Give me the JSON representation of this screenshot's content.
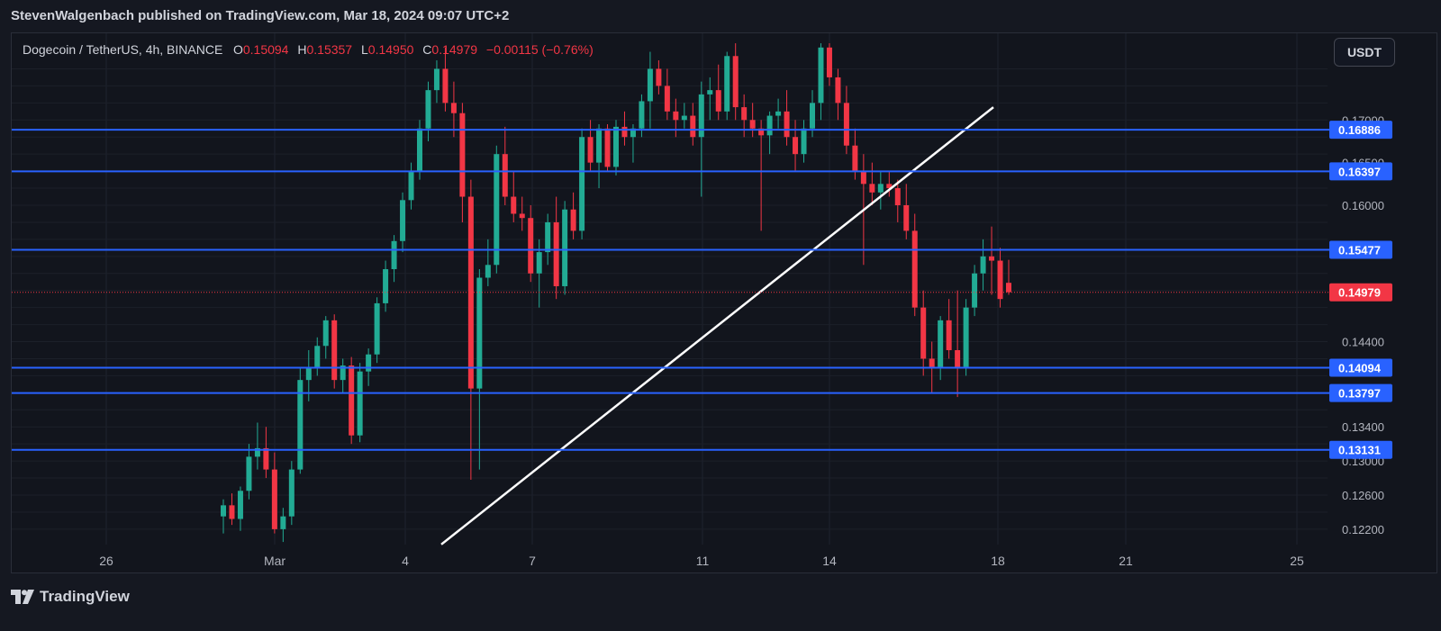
{
  "header": {
    "publisher_line": "StevenWalgenbach published on TradingView.com, Mar 18, 2024 09:07 UTC+2"
  },
  "legend": {
    "symbol": "Dogecoin / TetherUS, 4h, BINANCE",
    "open_label": "O",
    "open": "0.15094",
    "high_label": "H",
    "high": "0.15357",
    "low_label": "L",
    "low": "0.14950",
    "close_label": "C",
    "close": "0.14979",
    "change": "−0.00115 (−0.76%)"
  },
  "currency_button": "USDT",
  "footer": {
    "brand": "TradingView"
  },
  "colors": {
    "up": "#22ab94",
    "down": "#f23645",
    "level": "#2962ff",
    "trendline": "#ffffff",
    "background": "#12151d"
  },
  "chart_data": {
    "type": "candlestick",
    "x_ticks": [
      "26",
      "Mar",
      "4",
      "7",
      "11",
      "14",
      "18",
      "21",
      "25"
    ],
    "y_ticks": [
      "0.12200",
      "0.12600",
      "0.13000",
      "0.13400",
      "0.14400",
      "0.16000",
      "0.16500",
      "0.17000"
    ],
    "ylim": [
      0.12,
      0.177
    ],
    "grid": true,
    "horizontal_levels": [
      "0.16886",
      "0.16397",
      "0.15477",
      "0.14094",
      "0.13797",
      "0.13131"
    ],
    "current_price": "0.14979",
    "trendline": {
      "from": [
        "Mar 4",
        0.12
      ],
      "to": [
        "Mar 18",
        0.1715
      ]
    },
    "candles_ohlc": [
      [
        0.1235,
        0.1255,
        0.1215,
        0.1248
      ],
      [
        0.1248,
        0.1262,
        0.1225,
        0.1232
      ],
      [
        0.1232,
        0.127,
        0.1218,
        0.1265
      ],
      [
        0.1265,
        0.132,
        0.1255,
        0.1305
      ],
      [
        0.1305,
        0.1345,
        0.129,
        0.1315
      ],
      [
        0.1315,
        0.134,
        0.128,
        0.129
      ],
      [
        0.129,
        0.131,
        0.1215,
        0.122
      ],
      [
        0.122,
        0.1245,
        0.1205,
        0.1235
      ],
      [
        0.1235,
        0.13,
        0.1225,
        0.129
      ],
      [
        0.129,
        0.141,
        0.1285,
        0.1395
      ],
      [
        0.1395,
        0.143,
        0.137,
        0.141
      ],
      [
        0.141,
        0.1445,
        0.14,
        0.1435
      ],
      [
        0.1435,
        0.147,
        0.142,
        0.1465
      ],
      [
        0.1465,
        0.1472,
        0.1385,
        0.1395
      ],
      [
        0.1395,
        0.142,
        0.138,
        0.1412
      ],
      [
        0.1412,
        0.1422,
        0.132,
        0.133
      ],
      [
        0.133,
        0.1415,
        0.1322,
        0.1405
      ],
      [
        0.1405,
        0.1432,
        0.1388,
        0.1425
      ],
      [
        0.1425,
        0.1492,
        0.1415,
        0.1485
      ],
      [
        0.1485,
        0.1535,
        0.1475,
        0.1525
      ],
      [
        0.1525,
        0.1565,
        0.151,
        0.1558
      ],
      [
        0.1558,
        0.1615,
        0.1545,
        0.1606
      ],
      [
        0.1606,
        0.165,
        0.1595,
        0.164
      ],
      [
        0.164,
        0.17,
        0.163,
        0.169
      ],
      [
        0.169,
        0.1745,
        0.1675,
        0.1735
      ],
      [
        0.1735,
        0.177,
        0.172,
        0.176
      ],
      [
        0.176,
        0.1785,
        0.171,
        0.172
      ],
      [
        0.172,
        0.1745,
        0.168,
        0.1708
      ],
      [
        0.1708,
        0.172,
        0.158,
        0.161
      ],
      [
        0.161,
        0.163,
        0.1278,
        0.1385
      ],
      [
        0.1385,
        0.1525,
        0.129,
        0.1515
      ],
      [
        0.1515,
        0.156,
        0.1505,
        0.153
      ],
      [
        0.153,
        0.167,
        0.152,
        0.166
      ],
      [
        0.166,
        0.1692,
        0.16,
        0.161
      ],
      [
        0.161,
        0.164,
        0.158,
        0.159
      ],
      [
        0.159,
        0.161,
        0.157,
        0.1585
      ],
      [
        0.1585,
        0.16,
        0.151,
        0.152
      ],
      [
        0.152,
        0.156,
        0.148,
        0.1545
      ],
      [
        0.1545,
        0.159,
        0.153,
        0.158
      ],
      [
        0.158,
        0.161,
        0.149,
        0.1505
      ],
      [
        0.1505,
        0.1605,
        0.1495,
        0.1595
      ],
      [
        0.1595,
        0.1615,
        0.156,
        0.157
      ],
      [
        0.157,
        0.169,
        0.156,
        0.168
      ],
      [
        0.168,
        0.17,
        0.164,
        0.165
      ],
      [
        0.165,
        0.1695,
        0.162,
        0.169
      ],
      [
        0.169,
        0.1695,
        0.164,
        0.1645
      ],
      [
        0.1645,
        0.17,
        0.1635,
        0.1692
      ],
      [
        0.1692,
        0.171,
        0.167,
        0.168
      ],
      [
        0.168,
        0.1695,
        0.165,
        0.169
      ],
      [
        0.169,
        0.173,
        0.168,
        0.1722
      ],
      [
        0.1722,
        0.178,
        0.169,
        0.176
      ],
      [
        0.176,
        0.177,
        0.173,
        0.174
      ],
      [
        0.174,
        0.176,
        0.17,
        0.171
      ],
      [
        0.171,
        0.1725,
        0.168,
        0.17
      ],
      [
        0.17,
        0.172,
        0.169,
        0.1705
      ],
      [
        0.1705,
        0.172,
        0.167,
        0.168
      ],
      [
        0.168,
        0.1745,
        0.161,
        0.173
      ],
      [
        0.173,
        0.175,
        0.17,
        0.1735
      ],
      [
        0.1735,
        0.1765,
        0.17,
        0.171
      ],
      [
        0.171,
        0.178,
        0.17,
        0.1775
      ],
      [
        0.1775,
        0.179,
        0.17,
        0.1715
      ],
      [
        0.1715,
        0.173,
        0.168,
        0.17
      ],
      [
        0.17,
        0.172,
        0.168,
        0.169
      ],
      [
        0.169,
        0.17,
        0.157,
        0.1682
      ],
      [
        0.1682,
        0.171,
        0.166,
        0.1705
      ],
      [
        0.1705,
        0.1725,
        0.169,
        0.171
      ],
      [
        0.171,
        0.1735,
        0.167,
        0.168
      ],
      [
        0.168,
        0.17,
        0.164,
        0.166
      ],
      [
        0.166,
        0.17,
        0.165,
        0.169
      ],
      [
        0.169,
        0.1735,
        0.168,
        0.172
      ],
      [
        0.172,
        0.179,
        0.17,
        0.1785
      ],
      [
        0.1785,
        0.179,
        0.174,
        0.175
      ],
      [
        0.175,
        0.176,
        0.17,
        0.172
      ],
      [
        0.172,
        0.174,
        0.166,
        0.167
      ],
      [
        0.167,
        0.169,
        0.163,
        0.164
      ],
      [
        0.164,
        0.166,
        0.153,
        0.1625
      ],
      [
        0.1625,
        0.165,
        0.16,
        0.1615
      ],
      [
        0.1615,
        0.164,
        0.1595,
        0.1625
      ],
      [
        0.1625,
        0.164,
        0.161,
        0.162
      ],
      [
        0.162,
        0.163,
        0.158,
        0.16
      ],
      [
        0.16,
        0.1625,
        0.156,
        0.157
      ],
      [
        0.157,
        0.159,
        0.147,
        0.148
      ],
      [
        0.148,
        0.15,
        0.14,
        0.142
      ],
      [
        0.142,
        0.144,
        0.138,
        0.141
      ],
      [
        0.141,
        0.147,
        0.1395,
        0.1465
      ],
      [
        0.1465,
        0.149,
        0.142,
        0.143
      ],
      [
        0.143,
        0.15,
        0.1375,
        0.141
      ],
      [
        0.141,
        0.149,
        0.14,
        0.148
      ],
      [
        0.148,
        0.153,
        0.147,
        0.152
      ],
      [
        0.152,
        0.156,
        0.15,
        0.154
      ],
      [
        0.154,
        0.1575,
        0.1495,
        0.1535
      ],
      [
        0.1535,
        0.155,
        0.148,
        0.149
      ],
      [
        0.1509,
        0.1536,
        0.1495,
        0.1498
      ]
    ]
  }
}
